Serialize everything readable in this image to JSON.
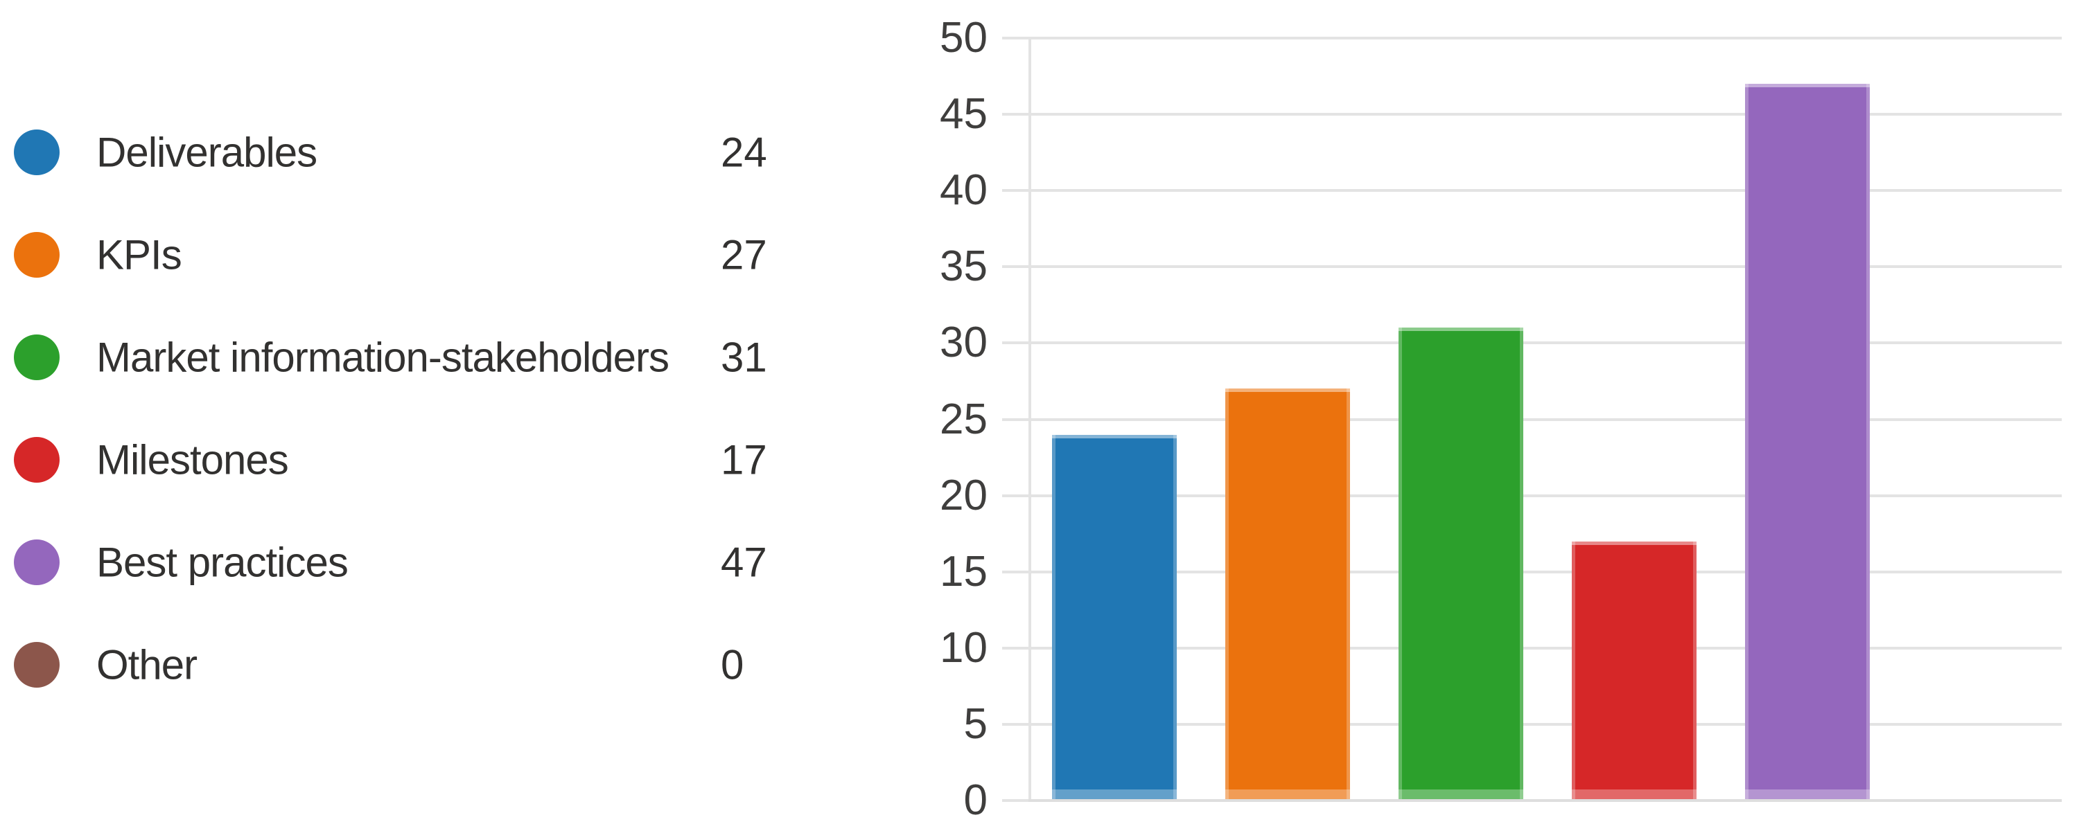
{
  "legend": {
    "items": [
      {
        "label": "Deliverables",
        "count": "24",
        "color": "#2077B4"
      },
      {
        "label": "KPIs",
        "count": "27",
        "color": "#EB720D"
      },
      {
        "label": "Market information-stakeholders",
        "count": "31",
        "color": "#2CA02C"
      },
      {
        "label": "Milestones",
        "count": "17",
        "color": "#D62728"
      },
      {
        "label": "Best practices",
        "count": "47",
        "color": "#9467BD"
      },
      {
        "label": "Other",
        "count": "0",
        "color": "#8C564B"
      }
    ]
  },
  "chart_data": {
    "type": "bar",
    "categories": [
      "Deliverables",
      "KPIs",
      "Market information-stakeholders",
      "Milestones",
      "Best practices",
      "Other"
    ],
    "values": [
      24,
      27,
      31,
      17,
      47,
      0
    ],
    "bar_colors": [
      "#2077B4",
      "#EB720D",
      "#2CA02C",
      "#D62728",
      "#9467BD",
      "#8C564B"
    ],
    "title": "",
    "xlabel": "",
    "ylabel": "",
    "ylim": [
      0,
      50
    ],
    "yticks": [
      0,
      5,
      10,
      15,
      20,
      25,
      30,
      35,
      40,
      45,
      50
    ],
    "grid": true,
    "x_category_labels_shown": false,
    "legend_position": "left"
  },
  "ui_colors": {
    "background": "#FFFFFF",
    "gridline": "#E3E3E3",
    "baseline": "#DEDEDE",
    "tick_label_text": "#3F3E3D",
    "legend_text": "#323130"
  }
}
